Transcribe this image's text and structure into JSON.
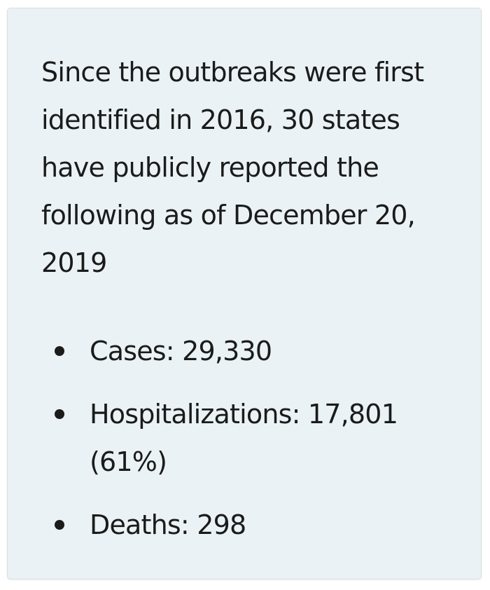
{
  "intro_text": "Since the outbreaks were first identified in 2016, 30 states have publicly reported the following as of December 20, 2019",
  "stats": [
    {
      "label": "Cases: 29,330"
    },
    {
      "label": "Hospitalizations: 17,801 (61%)"
    },
    {
      "label": "Deaths: 298"
    }
  ],
  "colors": {
    "box_background": "#eaf2f5",
    "box_border": "#d8dee2",
    "text": "#1b1b1b"
  }
}
